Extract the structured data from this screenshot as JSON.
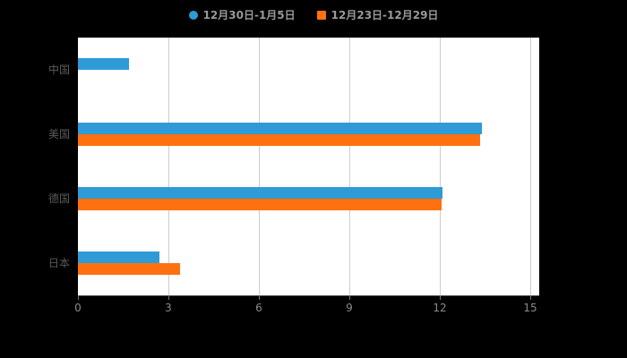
{
  "legend": {
    "items": [
      {
        "label": "12月30日-1月5日",
        "color": "#2E9BD6",
        "shape": "circle"
      },
      {
        "label": "12月23日-12月29日",
        "color": "#FF7110",
        "shape": "square"
      }
    ]
  },
  "chart_data": {
    "type": "bar",
    "orientation": "horizontal",
    "title": "",
    "xlabel": "",
    "ylabel": "",
    "categories": [
      "中国",
      "美国",
      "德国",
      "日本"
    ],
    "series": [
      {
        "name": "12月30日-1月5日",
        "color": "#2E9BD6",
        "values": [
          1.7,
          13.4,
          12.1,
          2.7
        ]
      },
      {
        "name": "12月23日-12月29日",
        "color": "#FF7110",
        "values": [
          0,
          13.35,
          12.05,
          3.4
        ]
      }
    ],
    "x_ticks": [
      0,
      3,
      6,
      9,
      12,
      15
    ],
    "xlim": [
      0,
      15.3
    ],
    "grid": true,
    "legend_position": "top"
  },
  "colors": {
    "page_background": "#000000",
    "plot_background": "#ffffff",
    "gridline": "#cccccc",
    "y_axis_label": "#5a5a5a",
    "x_axis_label": "#8a8a8a",
    "tick": "#777777",
    "legend_text": "#999999"
  }
}
